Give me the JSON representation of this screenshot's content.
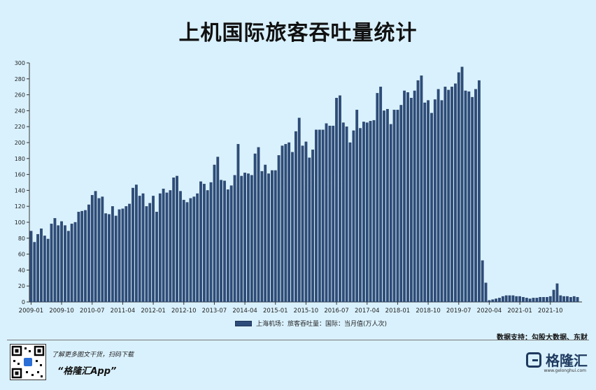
{
  "chart_data": {
    "type": "bar",
    "title": "上机国际旅客吞吐量统计",
    "series": [
      {
        "name": "上海机场：旅客吞吐量：国际：当月值(万人次)"
      }
    ],
    "ylim": [
      0,
      300
    ],
    "yticks": [
      0,
      20,
      40,
      60,
      80,
      100,
      120,
      140,
      160,
      180,
      200,
      220,
      240,
      260,
      280,
      300
    ],
    "start": "2009-01",
    "x_tick_labels": [
      "2009-01",
      "2009-10",
      "2010-07",
      "2011-04",
      "2012-01",
      "2012-10",
      "2013-07",
      "2014-04",
      "2015-01",
      "2015-10",
      "2016-07",
      "2017-04",
      "2018-01",
      "2018-10",
      "2019-07",
      "2020-04",
      "2021-01",
      "2021-10"
    ],
    "values": [
      89,
      75,
      85,
      92,
      83,
      79,
      98,
      105,
      96,
      101,
      96,
      89,
      98,
      100,
      113,
      114,
      115,
      122,
      134,
      139,
      130,
      132,
      111,
      110,
      120,
      108,
      116,
      117,
      120,
      123,
      143,
      147,
      133,
      136,
      120,
      124,
      133,
      113,
      136,
      142,
      137,
      140,
      156,
      158,
      139,
      128,
      125,
      130,
      132,
      136,
      151,
      148,
      140,
      150,
      172,
      182,
      153,
      152,
      141,
      146,
      159,
      198,
      158,
      162,
      161,
      159,
      186,
      194,
      164,
      172,
      161,
      165,
      165,
      184,
      196,
      198,
      200,
      188,
      214,
      231,
      196,
      201,
      181,
      191,
      216,
      216,
      216,
      224,
      221,
      221,
      256,
      259,
      225,
      220,
      200,
      215,
      241,
      218,
      226,
      225,
      227,
      228,
      262,
      270,
      240,
      242,
      223,
      241,
      241,
      247,
      265,
      263,
      256,
      265,
      278,
      284,
      250,
      253,
      237,
      254,
      267,
      253,
      270,
      266,
      270,
      274,
      288,
      295,
      265,
      264,
      257,
      267,
      278,
      52,
      24,
      2,
      3,
      4,
      5,
      7,
      8,
      8,
      8,
      7,
      7,
      6,
      5,
      4,
      5,
      5,
      6,
      6,
      6,
      7,
      15,
      23,
      8,
      7,
      7,
      6,
      7,
      6
    ]
  },
  "legend": {
    "label": "上海机场：旅客吞吐量：国际：当月值(万人次)"
  },
  "source": "数据支持：勾股大数据、东财",
  "watermark": "勾股大数据",
  "footer": {
    "promo_line1": "了解更多图文干货，扫码下载",
    "promo_line2": "“格隆汇App”",
    "brand_name": "格隆汇",
    "brand_url": "www.gelonghui.com"
  },
  "colors": {
    "bar": "#2d4c79",
    "bar_edge": "#1d3457",
    "background": "#d9f1fd"
  }
}
